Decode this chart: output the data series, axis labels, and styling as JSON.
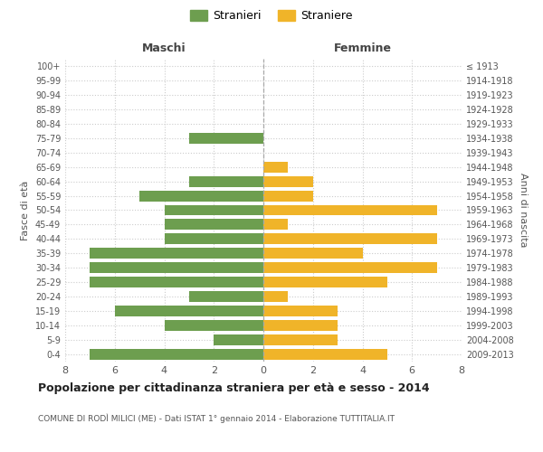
{
  "age_groups": [
    "0-4",
    "5-9",
    "10-14",
    "15-19",
    "20-24",
    "25-29",
    "30-34",
    "35-39",
    "40-44",
    "45-49",
    "50-54",
    "55-59",
    "60-64",
    "65-69",
    "70-74",
    "75-79",
    "80-84",
    "85-89",
    "90-94",
    "95-99",
    "100+"
  ],
  "birth_years": [
    "2009-2013",
    "2004-2008",
    "1999-2003",
    "1994-1998",
    "1989-1993",
    "1984-1988",
    "1979-1983",
    "1974-1978",
    "1969-1973",
    "1964-1968",
    "1959-1963",
    "1954-1958",
    "1949-1953",
    "1944-1948",
    "1939-1943",
    "1934-1938",
    "1929-1933",
    "1924-1928",
    "1919-1923",
    "1914-1918",
    "≤ 1913"
  ],
  "males": [
    7,
    2,
    4,
    6,
    3,
    7,
    7,
    7,
    4,
    4,
    4,
    5,
    3,
    0,
    0,
    3,
    0,
    0,
    0,
    0,
    0
  ],
  "females": [
    5,
    3,
    3,
    3,
    1,
    5,
    7,
    4,
    7,
    1,
    7,
    2,
    2,
    1,
    0,
    0,
    0,
    0,
    0,
    0,
    0
  ],
  "male_color": "#6d9e4f",
  "female_color": "#f0b429",
  "title": "Popolazione per cittadinanza straniera per età e sesso - 2014",
  "subtitle": "COMUNE DI RODÌ MILICI (ME) - Dati ISTAT 1° gennaio 2014 - Elaborazione TUTTITALIA.IT",
  "xlabel_left": "Maschi",
  "xlabel_right": "Femmine",
  "ylabel_left": "Fasce di età",
  "ylabel_right": "Anni di nascita",
  "legend_male": "Stranieri",
  "legend_female": "Straniere",
  "xlim": 8,
  "background_color": "#ffffff",
  "grid_color": "#cccccc"
}
